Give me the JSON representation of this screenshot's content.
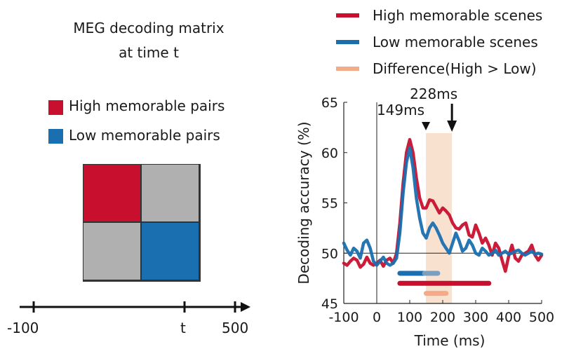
{
  "left_panel": {
    "title_line1": "MEG decoding matrix",
    "title_line2": "at time t",
    "legend": [
      {
        "label": "High memorable pairs",
        "color": "#c8102e"
      },
      {
        "label": "Low memorable pairs",
        "color": "#1a6fb0"
      }
    ],
    "matrix_colors": {
      "high": "#c8102e",
      "low": "#1a6fb0",
      "off": "#b0b0b0"
    },
    "timeline": {
      "start_label": "-100",
      "t_label": "t",
      "end_label": "500"
    }
  },
  "chart_data": {
    "type": "line",
    "xlabel": "Time (ms)",
    "ylabel": "Decoding accuracy (%)",
    "xlim": [
      -100,
      500
    ],
    "ylim": [
      45,
      65
    ],
    "xticks": [
      -100,
      0,
      100,
      200,
      300,
      400,
      500
    ],
    "yticks": [
      45,
      50,
      55,
      60,
      65
    ],
    "chance_level": 50,
    "legend": [
      {
        "label": "High memorable scenes",
        "color": "#c8102e"
      },
      {
        "label": "Low memorable scenes",
        "color": "#1a6fb0"
      },
      {
        "label": "Difference(High > Low)",
        "color": "#f4a987"
      }
    ],
    "shaded_window": [
      149,
      228
    ],
    "annotations": [
      {
        "label": "149ms",
        "x": 149
      },
      {
        "label": "228ms",
        "x": 228
      }
    ],
    "series": [
      {
        "name": "High memorable scenes",
        "color": "#c8102e",
        "x": [
          -100,
          -90,
          -80,
          -70,
          -60,
          -50,
          -40,
          -30,
          -20,
          -10,
          0,
          10,
          20,
          30,
          40,
          50,
          60,
          70,
          80,
          90,
          100,
          110,
          120,
          130,
          140,
          150,
          160,
          170,
          180,
          190,
          200,
          210,
          220,
          230,
          240,
          250,
          260,
          270,
          280,
          290,
          300,
          310,
          320,
          330,
          340,
          350,
          360,
          370,
          380,
          390,
          400,
          410,
          420,
          430,
          440,
          450,
          460,
          470,
          480,
          490,
          500
        ],
        "values": [
          49.0,
          48.8,
          49.2,
          49.5,
          49.3,
          48.6,
          48.9,
          49.6,
          49.0,
          48.8,
          49.0,
          49.3,
          48.7,
          49.3,
          49.5,
          49.0,
          50.0,
          53.0,
          57.0,
          60.0,
          61.3,
          60.0,
          57.5,
          55.5,
          54.5,
          54.5,
          55.3,
          55.2,
          54.6,
          54.0,
          54.5,
          54.2,
          53.8,
          53.0,
          52.5,
          52.4,
          52.8,
          53.0,
          51.8,
          51.6,
          52.8,
          52.0,
          51.0,
          51.5,
          50.8,
          49.8,
          51.0,
          50.5,
          49.3,
          48.2,
          49.7,
          50.8,
          49.5,
          49.2,
          49.8,
          50.0,
          50.2,
          50.8,
          49.8,
          49.3,
          49.8
        ]
      },
      {
        "name": "Low memorable scenes",
        "color": "#1a6fb0",
        "x": [
          -100,
          -90,
          -80,
          -70,
          -60,
          -50,
          -40,
          -30,
          -20,
          -10,
          0,
          10,
          20,
          30,
          40,
          50,
          60,
          70,
          80,
          90,
          100,
          110,
          120,
          130,
          140,
          150,
          160,
          170,
          180,
          190,
          200,
          210,
          220,
          230,
          240,
          250,
          260,
          270,
          280,
          290,
          300,
          310,
          320,
          330,
          340,
          350,
          360,
          370,
          380,
          390,
          400,
          410,
          420,
          430,
          440,
          450,
          460,
          470,
          480,
          490,
          500
        ],
        "values": [
          51.0,
          50.3,
          49.8,
          50.5,
          50.2,
          49.5,
          51.0,
          51.3,
          50.5,
          49.2,
          48.8,
          49.2,
          49.6,
          49.0,
          48.8,
          49.0,
          49.5,
          52.0,
          56.0,
          59.0,
          60.5,
          58.5,
          55.5,
          53.5,
          52.0,
          51.5,
          52.5,
          53.0,
          52.5,
          51.8,
          51.0,
          50.5,
          50.0,
          51.0,
          52.0,
          51.2,
          50.2,
          50.5,
          51.3,
          50.8,
          50.0,
          49.8,
          50.5,
          50.2,
          49.8,
          50.0,
          50.3,
          49.8,
          50.0,
          50.2,
          49.9,
          50.0,
          50.2,
          50.3,
          50.0,
          49.8,
          50.0,
          50.2,
          49.9,
          50.0,
          49.9
        ]
      }
    ],
    "significance_bars": [
      {
        "color": "#1a6fb0",
        "range": [
          70,
          145
        ],
        "y": 48.0
      },
      {
        "color": "#7a9fc0",
        "range": [
          145,
          185
        ],
        "y": 48.0
      },
      {
        "color": "#c8102e",
        "range": [
          70,
          340
        ],
        "y": 47.0
      },
      {
        "color": "#f4a987",
        "range": [
          150,
          210
        ],
        "y": 46.0
      }
    ]
  }
}
